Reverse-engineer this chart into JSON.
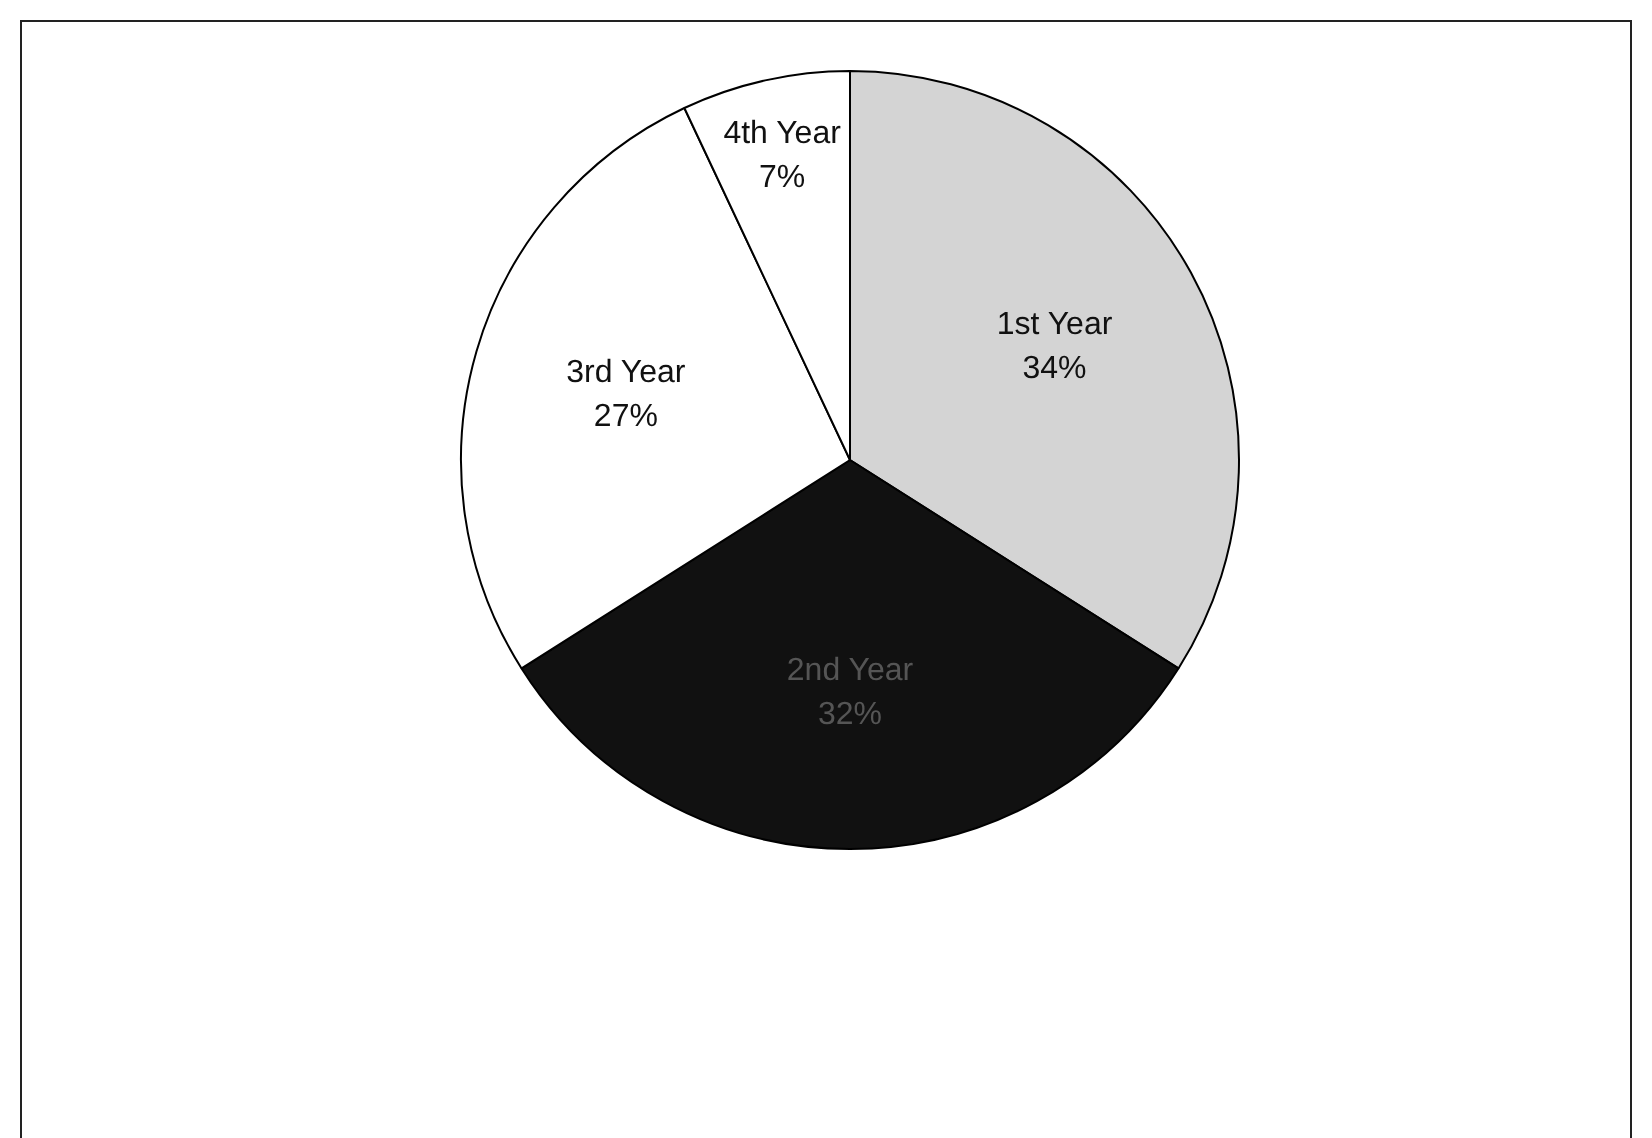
{
  "chart_data": {
    "type": "pie",
    "categories": [
      "1st Year",
      "2nd Year",
      "3rd Year",
      "4th Year"
    ],
    "values": [
      34,
      32,
      27,
      7
    ],
    "value_labels": [
      "34%",
      "32%",
      "27%",
      "7%"
    ],
    "colors": [
      "#d4d4d4",
      "#111111",
      "#ffffff",
      "#ffffff"
    ],
    "legend": false
  }
}
